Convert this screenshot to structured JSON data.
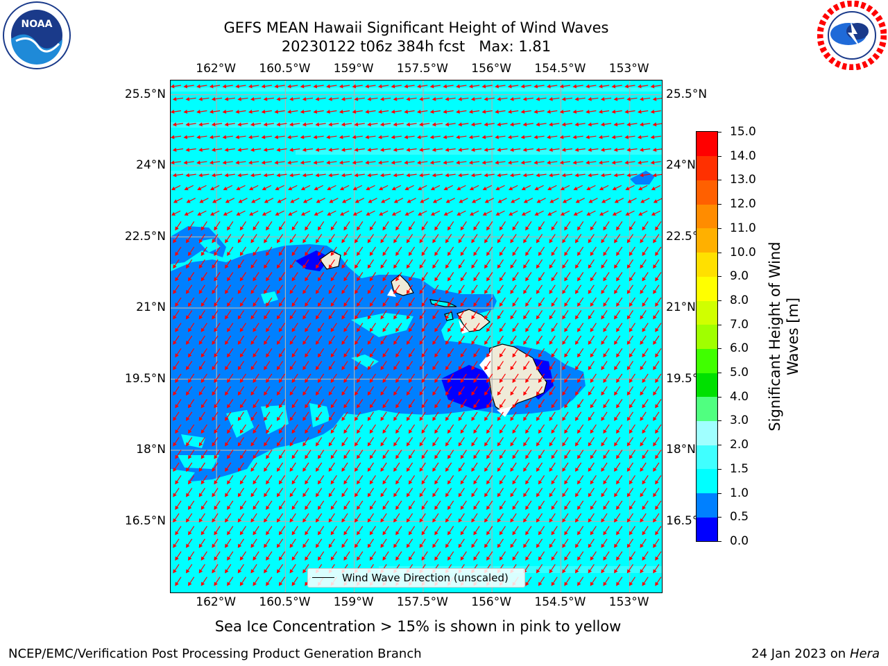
{
  "title": {
    "line1": "GEFS MEAN Hawaii Significant Height of Wind Waves",
    "line2": "20230122 t06z 384h fcst   Max: 1.81"
  },
  "map": {
    "lon_ticks": [
      "162°W",
      "160.5°W",
      "159°W",
      "157.5°W",
      "156°W",
      "154.5°W",
      "153°W"
    ],
    "lon_values": [
      -162,
      -160.5,
      -159,
      -157.5,
      -156,
      -154.5,
      -153
    ],
    "lat_ticks": [
      "25.5°N",
      "24°N",
      "22.5°N",
      "21°N",
      "19.5°N",
      "18°N",
      "16.5°N"
    ],
    "lat_values": [
      25.5,
      24,
      22.5,
      21,
      19.5,
      18,
      16.5
    ],
    "lon_range": [
      -163,
      -152.3
    ],
    "lat_range": [
      15.0,
      25.8
    ],
    "ocean_color": "#00ffff",
    "shallow_color": "#0080ff",
    "lowest_color": "#0000ff",
    "land_color": "#efebd8",
    "arrow_color": "#ff0000",
    "grid_color": "#b0b0b0"
  },
  "legend": {
    "label": "Wind Wave Direction (unscaled)"
  },
  "colorbar": {
    "label_line1": "Significant Height of Wind",
    "label_line2": "Waves [m]",
    "ticks": [
      "0.0",
      "0.5",
      "1.0",
      "1.5",
      "2.0",
      "3.0",
      "4.0",
      "5.0",
      "6.0",
      "7.0",
      "8.0",
      "9.0",
      "10.0",
      "11.0",
      "12.0",
      "13.0",
      "14.0",
      "15.0"
    ],
    "colors": [
      "#0000ff",
      "#0080ff",
      "#00ffff",
      "#40ffff",
      "#a0ffff",
      "#50ff80",
      "#00e000",
      "#40ff00",
      "#a0ff00",
      "#d0ff00",
      "#ffff00",
      "#ffe000",
      "#ffb000",
      "#ff8c00",
      "#ff6000",
      "#ff3000",
      "#ff0000"
    ]
  },
  "footnote": "Sea Ice Concentration > 15% is shown in pink to yellow",
  "credits": {
    "left": "NCEP/EMC/Verification Post Processing Product Generation Branch",
    "right_date": "24 Jan 2023 on ",
    "right_host": "Hera"
  },
  "logos": {
    "left": "noaa-logo",
    "left_text": "NOAA",
    "right": "nws-logo"
  }
}
